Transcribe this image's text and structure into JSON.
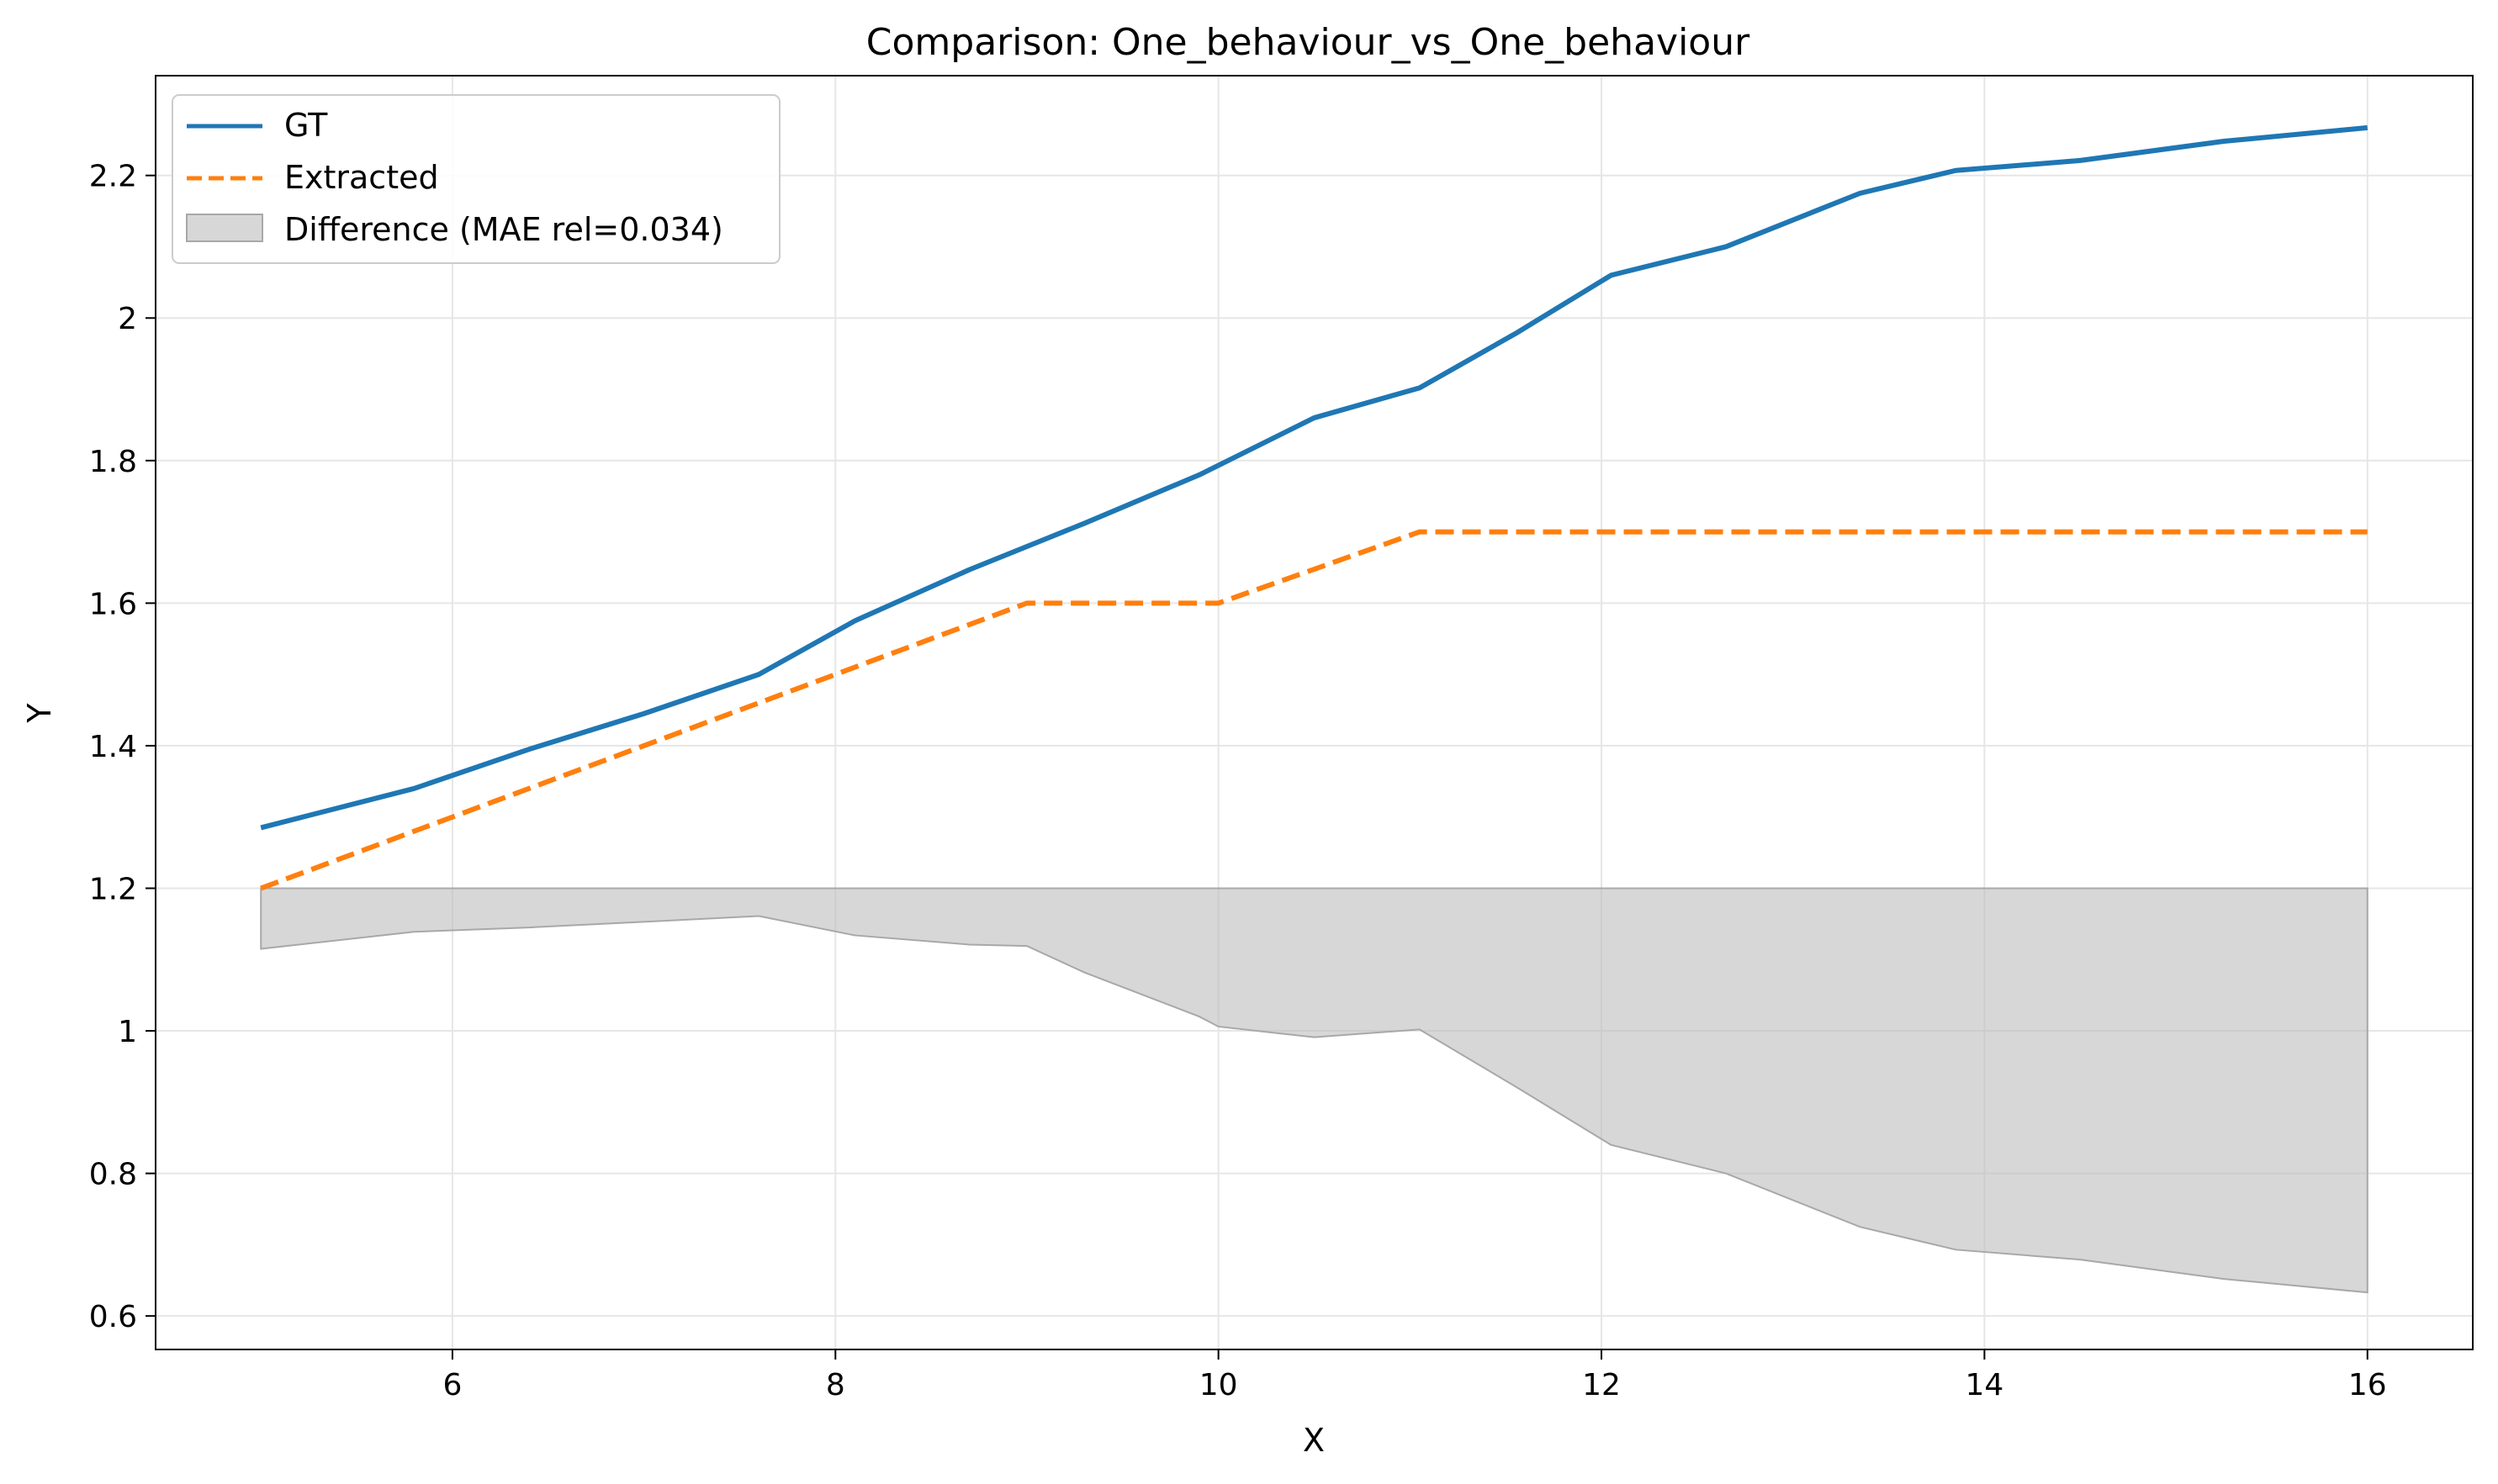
{
  "chart_data": {
    "type": "line",
    "title": "Comparison: One_behaviour_vs_One_behaviour",
    "xlabel": "X",
    "ylabel": "Y",
    "xlim": [
      4.45,
      16.55
    ],
    "ylim": [
      0.553,
      2.34
    ],
    "xticks": [
      6,
      8,
      10,
      12,
      14,
      16
    ],
    "yticks": [
      0.6,
      0.8,
      1.0,
      1.2,
      1.4,
      1.6,
      1.8,
      2.0,
      2.2
    ],
    "grid": true,
    "legend_position": "top-left",
    "series": [
      {
        "name": "GT",
        "color": "#1f77b4",
        "style": "solid",
        "x": [
          5.0,
          5.8,
          6.4,
          7.0,
          7.6,
          8.1,
          8.7,
          9.3,
          9.9,
          10.5,
          11.05,
          11.55,
          12.05,
          12.65,
          13.35,
          13.85,
          14.5,
          15.25,
          16.0
        ],
        "y": [
          1.285,
          1.34,
          1.395,
          1.445,
          1.5,
          1.575,
          1.647,
          1.712,
          1.78,
          1.86,
          1.902,
          1.978,
          2.06,
          2.1,
          2.175,
          2.207,
          2.221,
          2.248,
          2.267
        ]
      },
      {
        "name": "Extracted",
        "color": "#ff7f0e",
        "style": "dashed",
        "x": [
          5.0,
          9.0,
          10.0,
          11.05,
          16.0
        ],
        "y": [
          1.2,
          1.6,
          1.6,
          1.7,
          1.7
        ]
      }
    ],
    "difference": {
      "name": "Difference (MAE rel=0.034)",
      "color": "#bdbdbd",
      "baseline": 1.2,
      "x": [
        5.0,
        5.8,
        6.4,
        7.0,
        7.6,
        8.1,
        8.7,
        9.0,
        9.3,
        9.9,
        10.0,
        10.5,
        11.05,
        11.55,
        12.05,
        12.65,
        13.35,
        13.85,
        14.5,
        15.25,
        16.0
      ],
      "y": [
        1.115,
        1.139,
        1.145,
        1.153,
        1.161,
        1.134,
        1.121,
        1.119,
        1.082,
        1.02,
        1.006,
        0.991,
        1.002,
        0.922,
        0.84,
        0.8,
        0.725,
        0.693,
        0.679,
        0.652,
        0.633
      ]
    }
  }
}
